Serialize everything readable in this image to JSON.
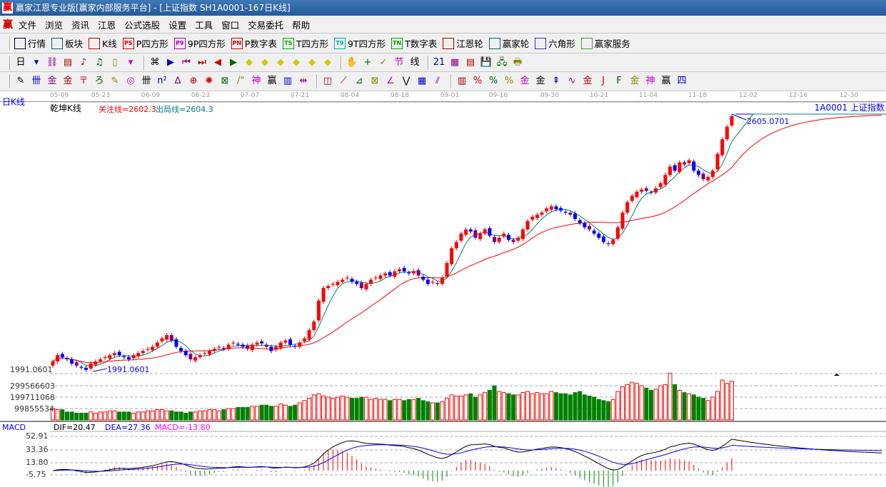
{
  "window": {
    "title": "赢家江恩专业版[赢家内部服务平台] - [上证指数  SH1A0001-167日K线]",
    "logo": "赢"
  },
  "menu": {
    "logo": "赢",
    "items": [
      "文件",
      "浏览",
      "资讯",
      "江恩",
      "公式选股",
      "设置",
      "工具",
      "窗口",
      "交易委托",
      "帮助"
    ]
  },
  "toolbar1": [
    {
      "label": "行情",
      "icon": "table-icon",
      "c": "#003"
    },
    {
      "label": "板块",
      "icon": "blocks-icon",
      "c": "#066"
    },
    {
      "label": "K线",
      "icon": "candles-icon",
      "c": "#c00"
    },
    {
      "label": "P四方形",
      "icon": "PS",
      "c": "#c00"
    },
    {
      "label": "9P四方形",
      "icon": "P9",
      "c": "#a0a"
    },
    {
      "label": "P数字表",
      "icon": "PN",
      "c": "#c00"
    },
    {
      "label": "T四方形",
      "icon": "TS",
      "c": "#0a0"
    },
    {
      "label": "9T四方形",
      "icon": "T9",
      "c": "#0aa"
    },
    {
      "label": "T数字表",
      "icon": "TN",
      "c": "#0a0"
    },
    {
      "label": "江恩轮",
      "icon": "wheel-icon",
      "c": "#900"
    },
    {
      "label": "赢家轮",
      "icon": "big-wheel-icon",
      "c": "#066"
    },
    {
      "label": "六角形",
      "icon": "hexagon-icon",
      "c": "#33a"
    },
    {
      "label": "赢家服务",
      "icon": "dollar-icon",
      "c": "#3a3"
    }
  ],
  "toolbar2": [
    "日",
    "▾",
    "⛓",
    "▤",
    "♪",
    "♫",
    "▯",
    "▾",
    "⌘",
    "▶",
    "⏮",
    "⏭",
    "◀",
    "▶",
    "◆",
    "◆",
    "◆",
    "◆",
    "◆",
    "◆",
    "✋",
    "+",
    "✓",
    "节",
    "线",
    "21",
    "▦",
    "▤",
    "💾",
    "🖧",
    "🖶"
  ],
  "toolbar3": [
    "✎",
    "卌",
    "金",
    "金",
    "〒",
    "ろ",
    "✎",
    "◎",
    "卌",
    "n²",
    "∆",
    "⊕",
    "✺",
    "⊠",
    "/\"",
    "神",
    "赢",
    "▥",
    "⇹",
    "◫",
    "⟋",
    "⊿",
    "⊠",
    "∠",
    "⋁",
    "▦",
    "⫽",
    "▥",
    "%",
    "%",
    "%",
    "金",
    "金",
    "⇞",
    "∿",
    "金",
    "J",
    "F",
    "金",
    "神",
    "赢",
    "四"
  ],
  "dates": [
    "05-09",
    "05-23",
    "06-09",
    "06-23",
    "07-07",
    "07-21",
    "08-04",
    "08-18",
    "09-01",
    "09-16",
    "09-30",
    "10-21",
    "11-04",
    "11-18",
    "12-02",
    "12-16",
    "12-30"
  ],
  "chart": {
    "period_label": "日K线",
    "indicator_name": "乾坤K线",
    "focus_line": "关注线=2602.3",
    "exit_line": "出局线=2604.3",
    "symbol": "1A0001  上证指数",
    "high_label": "2605.0701",
    "low_label": "1991.0601",
    "low_axis": "1991.0601",
    "volume_ticks": [
      "299566603",
      "199711068",
      "99855534"
    ],
    "macd": {
      "name": "MACD",
      "dif": "DIF=20.47",
      "dea": "DEA=27.36",
      "macd": "MACD=-13.80",
      "ticks": [
        "52.91",
        "33.36",
        "13.80",
        "-5.75"
      ]
    },
    "colors": {
      "up": "#ff0000",
      "down": "#0000ff",
      "alt": "#800080",
      "ma_short": "#008080",
      "ma_long": "#ff0000",
      "vol_down": "#008000"
    }
  },
  "chart_data": {
    "type": "candlestick",
    "closes": [
      2015,
      2030,
      2025,
      2020,
      2010,
      2005,
      2000,
      1995,
      2010,
      2015,
      2020,
      2025,
      2030,
      2035,
      2030,
      2025,
      2020,
      2030,
      2035,
      2040,
      2045,
      2050,
      2060,
      2070,
      2078,
      2065,
      2050,
      2040,
      2030,
      2020,
      2025,
      2030,
      2035,
      2040,
      2045,
      2050,
      2045,
      2055,
      2060,
      2055,
      2050,
      2045,
      2055,
      2060,
      2058,
      2050,
      2040,
      2050,
      2060,
      2065,
      2055,
      2050,
      2060,
      2070,
      2090,
      2110,
      2160,
      2190,
      2195,
      2200,
      2205,
      2210,
      2215,
      2205,
      2200,
      2190,
      2200,
      2210,
      2215,
      2220,
      2225,
      2220,
      2230,
      2235,
      2230,
      2225,
      2230,
      2220,
      2210,
      2200,
      2205,
      2200,
      2215,
      2250,
      2285,
      2300,
      2320,
      2330,
      2325,
      2310,
      2320,
      2330,
      2315,
      2300,
      2310,
      2320,
      2305,
      2300,
      2310,
      2330,
      2350,
      2360,
      2365,
      2370,
      2380,
      2385,
      2378,
      2375,
      2370,
      2365,
      2355,
      2345,
      2335,
      2330,
      2320,
      2310,
      2300,
      2295,
      2305,
      2335,
      2370,
      2395,
      2410,
      2420,
      2425,
      2422,
      2418,
      2428,
      2440,
      2460,
      2480,
      2470,
      2490,
      2485,
      2495,
      2470,
      2460,
      2450,
      2455,
      2470,
      2510,
      2545,
      2575,
      2600
    ],
    "volume_1e8": [
      1.0,
      0.9,
      0.9,
      0.7,
      0.7,
      0.6,
      0.6,
      0.6,
      0.7,
      0.6,
      0.7,
      0.7,
      0.8,
      0.8,
      0.7,
      0.7,
      0.7,
      0.6,
      0.7,
      0.7,
      0.8,
      0.8,
      0.9,
      0.9,
      0.8,
      0.8,
      0.7,
      0.7,
      0.6,
      0.7,
      0.7,
      0.8,
      0.8,
      0.9,
      0.9,
      0.8,
      0.9,
      1.0,
      1.0,
      1.1,
      1.1,
      1.1,
      1.2,
      1.2,
      1.3,
      1.3,
      1.2,
      1.2,
      1.4,
      1.3,
      1.2,
      1.3,
      1.5,
      1.7,
      1.9,
      2.2,
      2.3,
      2.1,
      2.0,
      1.9,
      2.0,
      2.1,
      2.0,
      1.9,
      1.9,
      2.0,
      2.0,
      1.8,
      1.9,
      1.8,
      1.8,
      1.7,
      1.8,
      1.8,
      1.7,
      1.8,
      1.8,
      1.9,
      1.7,
      1.6,
      1.5,
      1.5,
      1.6,
      1.9,
      2.2,
      2.1,
      2.1,
      2.2,
      2.3,
      2.0,
      2.2,
      2.4,
      2.6,
      3.0,
      2.5,
      2.4,
      2.3,
      2.2,
      2.2,
      2.4,
      2.5,
      2.3,
      2.4,
      2.3,
      2.3,
      2.5,
      2.4,
      2.3,
      2.3,
      2.2,
      2.4,
      2.5,
      2.2,
      2.1,
      2.0,
      1.8,
      1.7,
      1.6,
      1.8,
      2.5,
      2.9,
      3.1,
      3.3,
      3.2,
      3.0,
      2.8,
      2.6,
      2.7,
      3.0,
      3.1,
      4.1,
      3.1,
      2.6,
      2.4,
      2.3,
      2.2,
      2.0,
      1.9,
      1.7,
      2.0,
      2.5,
      3.5,
      3.2,
      3.4
    ],
    "ylim": [
      1991.06,
      2605.07
    ]
  }
}
